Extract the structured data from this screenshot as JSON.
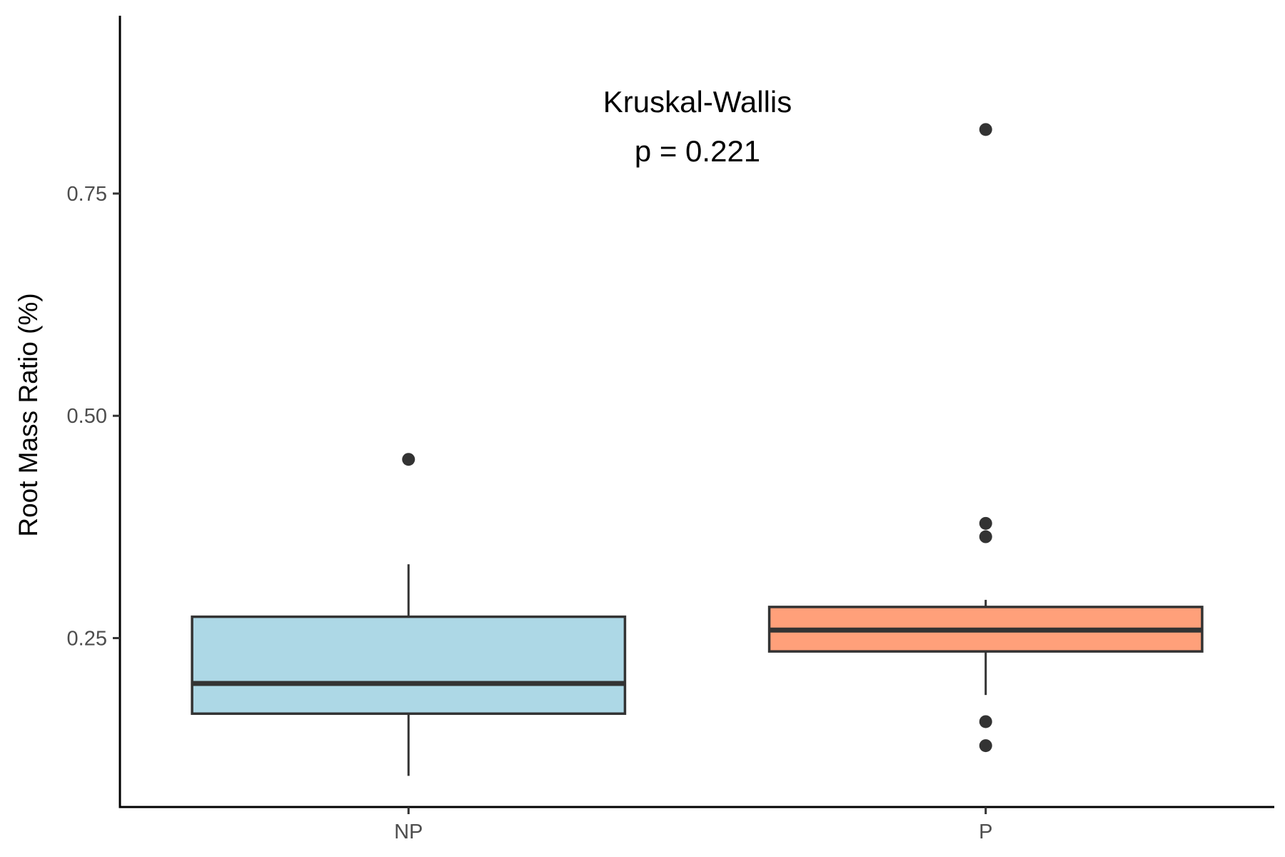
{
  "chart_data": {
    "type": "boxplot",
    "ylabel": "Root Mass Ratio (%)",
    "xlabel": "",
    "categories": [
      "NP",
      "P"
    ],
    "ylim": [
      0.06,
      0.95
    ],
    "yticks": [
      0.25,
      0.5,
      0.75
    ],
    "ytick_labels": [
      "0.25",
      "0.50",
      "0.75"
    ],
    "grid": false,
    "annotation": [
      "Kruskal-Wallis",
      "p = 0.221"
    ],
    "boxes": [
      {
        "name": "NP",
        "whisker_low": 0.095,
        "q1": 0.165,
        "median": 0.199,
        "q3": 0.274,
        "whisker_high": 0.333,
        "outliers": [
          0.451
        ],
        "fill": "#add8e6"
      },
      {
        "name": "P",
        "whisker_low": 0.186,
        "q1": 0.235,
        "median": 0.259,
        "q3": 0.285,
        "whisker_high": 0.293,
        "outliers": [
          0.822,
          0.379,
          0.364,
          0.156,
          0.129
        ],
        "fill": "#ffa07a"
      }
    ]
  }
}
